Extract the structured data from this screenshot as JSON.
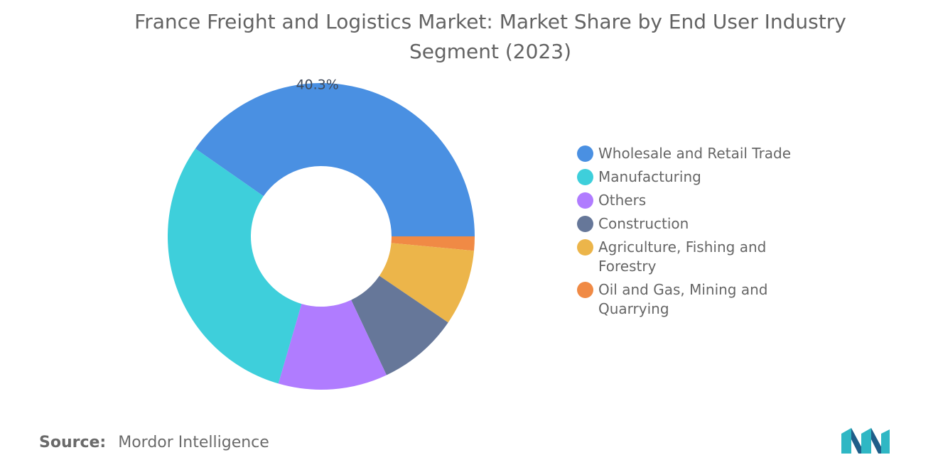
{
  "title": "France Freight and Logistics Market: Market Share by End User Industry Segment (2023)",
  "source": {
    "label": "Source:",
    "value": "Mordor Intelligence"
  },
  "chart_data": {
    "type": "pie",
    "variant": "donut",
    "title": "France Freight and Logistics Market: Market Share by End User Industry Segment (2023)",
    "categories": [
      "Wholesale and Retail Trade",
      "Oil and Gas, Mining and Quarrying",
      "Agriculture, Fishing and Forestry",
      "Construction",
      "Others",
      "Manufacturing"
    ],
    "values": [
      40.3,
      1.5,
      8.0,
      8.5,
      11.5,
      30.2
    ],
    "colors": [
      "#4a90e2",
      "#f08a45",
      "#ecb54a",
      "#667799",
      "#b07cff",
      "#3ecfdb"
    ],
    "data_labels": [
      "40.3%",
      "",
      "",
      "",
      "",
      ""
    ],
    "legend_placement": "right"
  },
  "legend": [
    {
      "label": "Wholesale and Retail Trade",
      "color": "#4a90e2"
    },
    {
      "label": "Manufacturing",
      "color": "#3ecfdb"
    },
    {
      "label": "Others",
      "color": "#b07cff"
    },
    {
      "label": "Construction",
      "color": "#667799"
    },
    {
      "label": "Agriculture, Fishing and Forestry",
      "color": "#ecb54a"
    },
    {
      "label": "Oil and Gas, Mining and Quarrying",
      "color": "#f08a45"
    }
  ]
}
